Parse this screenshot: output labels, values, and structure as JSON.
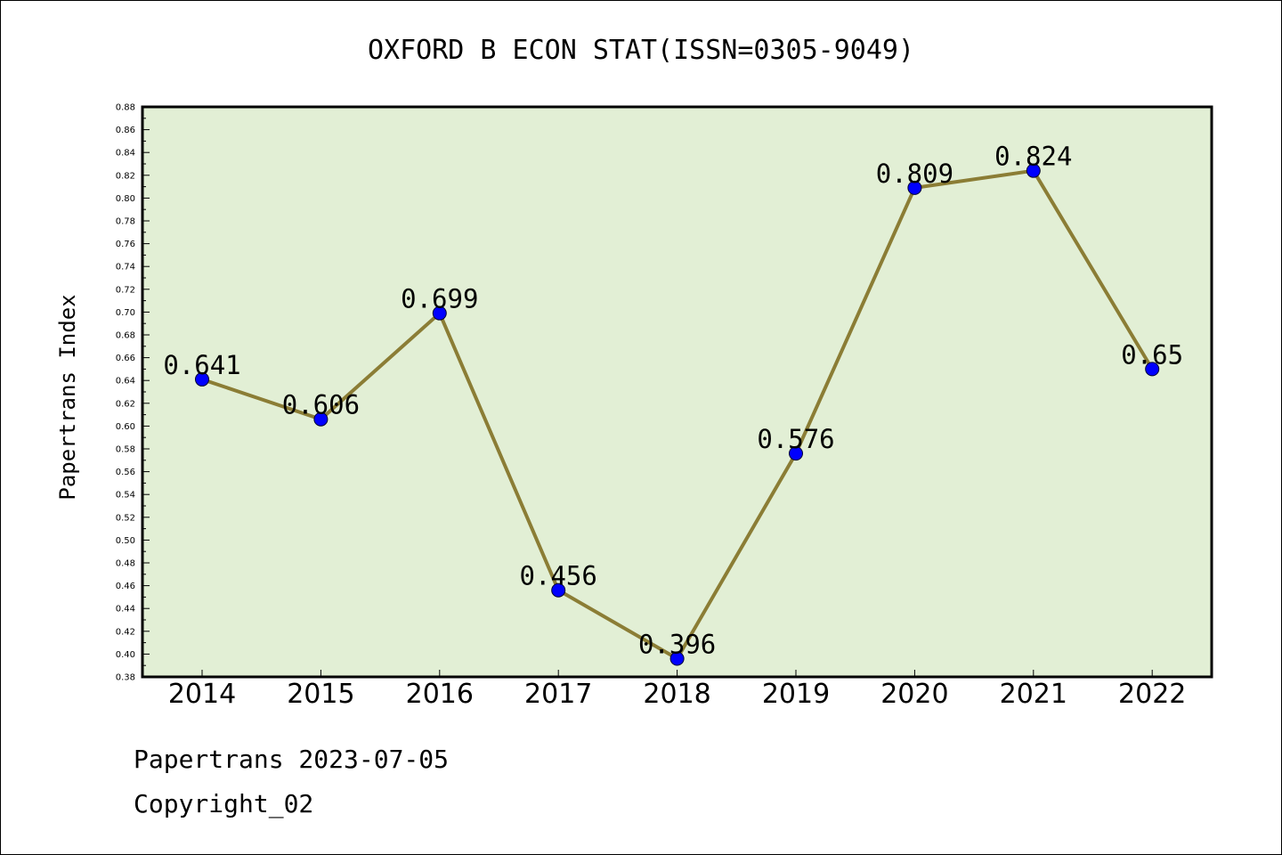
{
  "chart_data": {
    "type": "line",
    "title": "OXFORD B ECON STAT(ISSN=0305-9049)",
    "xlabel": "",
    "ylabel": "Papertrans Index",
    "categories": [
      "2014",
      "2015",
      "2016",
      "2017",
      "2018",
      "2019",
      "2020",
      "2021",
      "2022"
    ],
    "series": [
      {
        "values": [
          0.641,
          0.606,
          0.699,
          0.456,
          0.396,
          0.576,
          0.809,
          0.824,
          0.65
        ]
      }
    ],
    "data_labels": [
      "0.641",
      "0.606",
      "0.699",
      "0.456",
      "0.396",
      "0.576",
      "0.809",
      "0.824",
      "0.65"
    ],
    "ylim": [
      0.38,
      0.88
    ],
    "yticks": [
      "0.38",
      "0.40",
      "0.42",
      "0.44",
      "0.46",
      "0.48",
      "0.50",
      "0.52",
      "0.54",
      "0.56",
      "0.58",
      "0.60",
      "0.62",
      "0.64",
      "0.66",
      "0.68",
      "0.70",
      "0.72",
      "0.74",
      "0.76",
      "0.78",
      "0.80",
      "0.82",
      "0.84",
      "0.86",
      "0.88"
    ],
    "grid": false,
    "colors": {
      "plot_background": "#e2efd5",
      "line": "#8b7d35",
      "marker": "#0000ff"
    }
  },
  "footer": {
    "line1": "Papertrans 2023-07-05",
    "line2": "Copyright_02"
  }
}
